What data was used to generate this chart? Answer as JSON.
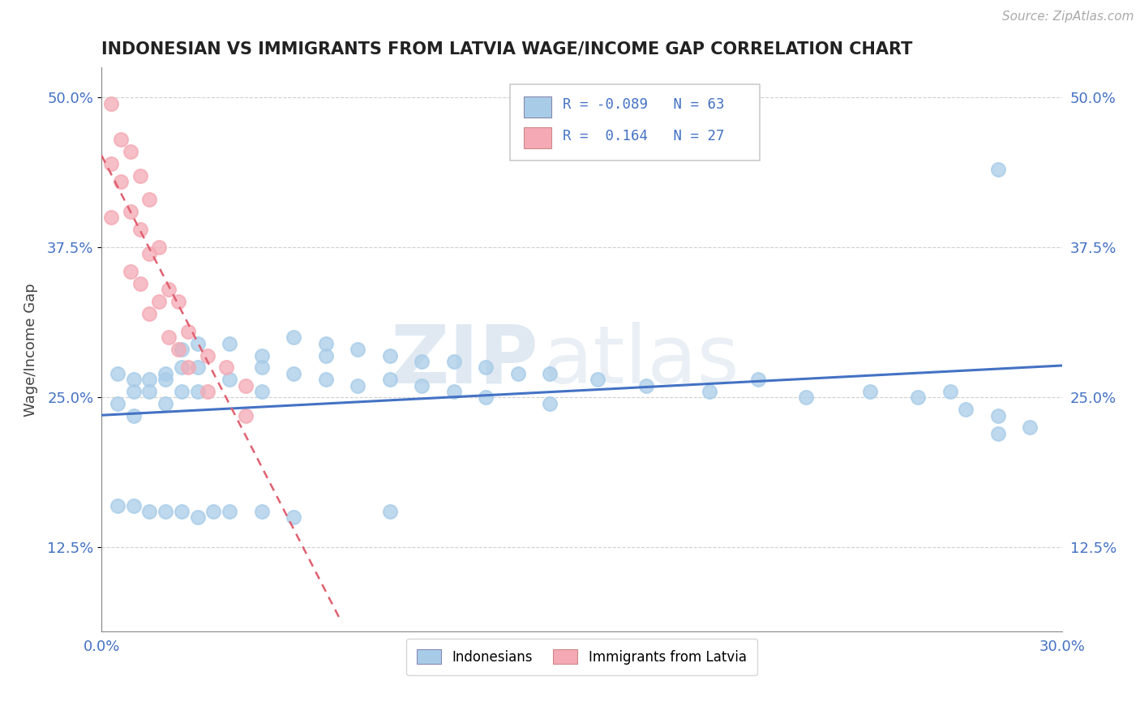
{
  "title": "INDONESIAN VS IMMIGRANTS FROM LATVIA WAGE/INCOME GAP CORRELATION CHART",
  "source": "Source: ZipAtlas.com",
  "ylabel": "Wage/Income Gap",
  "xlim": [
    0.0,
    0.3
  ],
  "ylim": [
    0.055,
    0.525
  ],
  "yticks": [
    0.125,
    0.25,
    0.375,
    0.5
  ],
  "ytick_labels": [
    "12.5%",
    "25.0%",
    "37.5%",
    "50.0%"
  ],
  "xticks": [
    0.0,
    0.3
  ],
  "xtick_labels": [
    "0.0%",
    "30.0%"
  ],
  "blue_R": -0.089,
  "blue_N": 63,
  "pink_R": 0.164,
  "pink_N": 27,
  "blue_color": "#a8cce8",
  "pink_color": "#f4a9b4",
  "blue_line_color": "#4472C4",
  "pink_line_color": "#e06070",
  "tick_color": "#4472C4",
  "watermark": "ZIPatlas",
  "legend_label_blue": "Indonesians",
  "legend_label_pink": "Immigrants from Latvia",
  "blue_scatter_x": [
    0.005,
    0.005,
    0.01,
    0.01,
    0.01,
    0.015,
    0.015,
    0.02,
    0.02,
    0.02,
    0.025,
    0.025,
    0.025,
    0.03,
    0.03,
    0.03,
    0.04,
    0.04,
    0.05,
    0.05,
    0.05,
    0.06,
    0.06,
    0.07,
    0.07,
    0.07,
    0.08,
    0.08,
    0.09,
    0.09,
    0.1,
    0.1,
    0.11,
    0.11,
    0.12,
    0.12,
    0.13,
    0.14,
    0.14,
    0.155,
    0.17,
    0.19,
    0.205,
    0.22,
    0.24,
    0.255,
    0.265,
    0.27,
    0.28,
    0.28,
    0.29,
    0.005,
    0.01,
    0.015,
    0.02,
    0.025,
    0.03,
    0.035,
    0.04,
    0.05,
    0.06,
    0.09,
    0.28
  ],
  "blue_scatter_y": [
    0.27,
    0.245,
    0.265,
    0.255,
    0.235,
    0.265,
    0.255,
    0.27,
    0.265,
    0.245,
    0.29,
    0.275,
    0.255,
    0.295,
    0.275,
    0.255,
    0.295,
    0.265,
    0.285,
    0.275,
    0.255,
    0.3,
    0.27,
    0.295,
    0.285,
    0.265,
    0.29,
    0.26,
    0.285,
    0.265,
    0.28,
    0.26,
    0.28,
    0.255,
    0.275,
    0.25,
    0.27,
    0.27,
    0.245,
    0.265,
    0.26,
    0.255,
    0.265,
    0.25,
    0.255,
    0.25,
    0.255,
    0.24,
    0.235,
    0.22,
    0.225,
    0.16,
    0.16,
    0.155,
    0.155,
    0.155,
    0.15,
    0.155,
    0.155,
    0.155,
    0.15,
    0.155,
    0.44
  ],
  "pink_scatter_x": [
    0.003,
    0.003,
    0.003,
    0.006,
    0.006,
    0.009,
    0.009,
    0.009,
    0.012,
    0.012,
    0.012,
    0.015,
    0.015,
    0.015,
    0.018,
    0.018,
    0.021,
    0.021,
    0.024,
    0.024,
    0.027,
    0.027,
    0.033,
    0.033,
    0.039,
    0.045,
    0.045
  ],
  "pink_scatter_y": [
    0.495,
    0.445,
    0.4,
    0.465,
    0.43,
    0.455,
    0.405,
    0.355,
    0.435,
    0.39,
    0.345,
    0.415,
    0.37,
    0.32,
    0.375,
    0.33,
    0.34,
    0.3,
    0.33,
    0.29,
    0.305,
    0.275,
    0.285,
    0.255,
    0.275,
    0.26,
    0.235
  ],
  "background_color": "#ffffff",
  "grid_color": "#d0d0d0"
}
